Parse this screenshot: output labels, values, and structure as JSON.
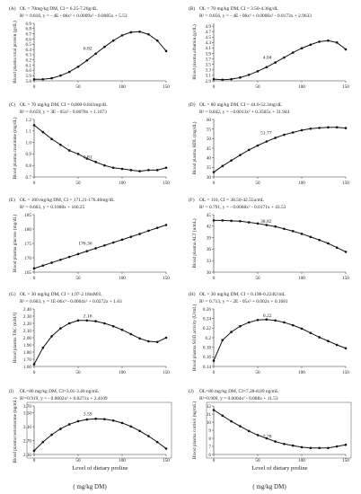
{
  "chart_data": [
    {
      "type": "line",
      "letter": "(A)",
      "caption1": "OL = 70mg/kg DM, CI = 6.25-7.26g/dL",
      "caption2": "R² = 0.816, y = - 4E - 06x³ + 0.0009x² - 0.0085x + 5.53",
      "ylabel": "Blood plasma total protein (g/dL)",
      "ylim": [
        5.8,
        6.9
      ],
      "yticks": [
        "5.8",
        "5.9",
        "6.0",
        "6.1",
        "6.2",
        "6.3",
        "6.4",
        "6.5",
        "6.6",
        "6.7",
        "6.8",
        "6.9"
      ],
      "xlim": [
        0,
        150
      ],
      "xticks": [
        "0",
        "50",
        "100",
        "150"
      ],
      "annotation": "6.82",
      "x": [
        0,
        10,
        20,
        30,
        40,
        50,
        60,
        70,
        80,
        90,
        100,
        110,
        120,
        130,
        140,
        150
      ],
      "values": [
        5.83,
        5.83,
        5.85,
        5.9,
        5.97,
        6.07,
        6.19,
        6.32,
        6.45,
        6.57,
        6.67,
        6.73,
        6.74,
        6.69,
        6.57,
        6.37
      ],
      "frame": false
    },
    {
      "type": "line",
      "letter": "(B)",
      "caption1": "OL = 70 mg/kg DM, CI = 3.50-4.36g/dL",
      "caption2": "R² = 0.856, y = - 4E - 06x³ + 0.0006x² - 0.0173x + 2.9633",
      "ylabel": "Blood plasma albumin (g/dL)",
      "ylim": [
        2.9,
        5.0
      ],
      "yticks": [
        "2.9",
        "3.1",
        "3.3",
        "3.5",
        "3.7",
        "3.9",
        "4.1",
        "4.3",
        "4.5",
        "4.7",
        "4.9"
      ],
      "xlim": [
        0,
        150
      ],
      "xticks": [
        "0",
        "50",
        "100",
        "150"
      ],
      "annotation": "4.04",
      "x": [
        0,
        10,
        20,
        30,
        40,
        50,
        60,
        70,
        80,
        90,
        100,
        110,
        120,
        130,
        140,
        150
      ],
      "values": [
        2.96,
        2.94,
        2.96,
        3.02,
        3.12,
        3.25,
        3.4,
        3.57,
        3.75,
        3.93,
        4.09,
        4.22,
        4.33,
        4.37,
        4.3,
        4.05
      ],
      "frame": false
    },
    {
      "type": "line",
      "letter": "(C)",
      "caption1": "OL = 70 mg/kg DM, CI = 0.800-0.841mg/dL",
      "caption2": "R² = 0.659, y = 3E - 05x² - 0.0078x + 1.1673",
      "ylabel": "Blood plasma creatinine (mg/dL)",
      "ylim": [
        0.7,
        1.2
      ],
      "yticks": [
        "0.7",
        "0.8",
        "0.9",
        "1.0",
        "1.1",
        "1.2"
      ],
      "xlim": [
        0,
        150
      ],
      "xticks": [
        "0",
        "50",
        "100",
        "150"
      ],
      "annotation": "0.81",
      "x": [
        0,
        10,
        20,
        30,
        40,
        50,
        60,
        70,
        80,
        90,
        100,
        110,
        120,
        130,
        140,
        150
      ],
      "values": [
        1.15,
        1.09,
        1.03,
        0.98,
        0.93,
        0.9,
        0.86,
        0.83,
        0.8,
        0.78,
        0.77,
        0.76,
        0.75,
        0.76,
        0.76,
        0.78
      ],
      "frame": false
    },
    {
      "type": "line",
      "letter": "(D)",
      "caption1": "OL = 80 mg/kg DM, CI = 44.0-52.3mg/dL",
      "caption2": "R² = 0.842, y = - 0.0013x² + 0.3565x + 31.944",
      "ylabel": "Blood plasma HDL (mg/dL)",
      "ylim": [
        30,
        60
      ],
      "yticks": [
        "30",
        "35",
        "40",
        "45",
        "50",
        "55",
        "60"
      ],
      "xlim": [
        0,
        150
      ],
      "xticks": [
        "0",
        "50",
        "100",
        "150"
      ],
      "annotation": "51.77",
      "x": [
        0,
        10,
        20,
        30,
        40,
        50,
        60,
        70,
        80,
        90,
        100,
        110,
        120,
        130,
        140,
        150
      ],
      "values": [
        32.5,
        35.7,
        38.6,
        41.4,
        44.1,
        46.4,
        48.5,
        50.4,
        52.0,
        53.2,
        54.4,
        55.2,
        55.6,
        55.9,
        55.9,
        55.5
      ],
      "frame": false
    },
    {
      "type": "line",
      "letter": "(E)",
      "caption1": "OL = 100 mg/kg DM, CI = 171.21-176.40mg/dL",
      "caption2": "R² = 0.663, y = 0.1008x + 166.25",
      "ylabel": "Blood plasma glucose (mg/dL)",
      "ylim": [
        165,
        185
      ],
      "yticks": [
        "165",
        "170",
        "175",
        "180",
        "185"
      ],
      "xlim": [
        0,
        150
      ],
      "xticks": [
        "0",
        "50",
        "100",
        "150"
      ],
      "annotation": "176.36",
      "x": [
        0,
        10,
        20,
        30,
        40,
        50,
        60,
        70,
        80,
        90,
        100,
        110,
        120,
        130,
        140,
        150
      ],
      "values": [
        166.3,
        167.3,
        168.3,
        169.3,
        170.3,
        171.3,
        172.3,
        173.3,
        174.3,
        175.3,
        176.3,
        177.3,
        178.3,
        179.4,
        180.4,
        181.4
      ],
      "frame": false
    },
    {
      "type": "line",
      "letter": "(F)",
      "caption1": "OL = 110, CI = 38.50-42.55u/mL",
      "caption2": "R² = 0.791, y = - 0.0008x² - 0.0171x + 43.53",
      "ylabel": "Blood plasma ALT (u/mL)",
      "ylim": [
        30,
        45
      ],
      "yticks": [
        "30",
        "33",
        "36",
        "39",
        "42",
        "45"
      ],
      "xlim": [
        0,
        150
      ],
      "xticks": [
        "0",
        "50",
        "100",
        "150"
      ],
      "annotation": "38.82",
      "x": [
        0,
        10,
        20,
        30,
        40,
        50,
        60,
        70,
        80,
        90,
        100,
        110,
        120,
        130,
        140,
        150
      ],
      "values": [
        43.5,
        43.5,
        43.4,
        43.3,
        43.0,
        42.7,
        42.3,
        41.9,
        41.3,
        40.7,
        40.0,
        39.2,
        38.4,
        37.5,
        36.4,
        35.3
      ],
      "frame": false
    },
    {
      "type": "line",
      "letter": "(G)",
      "caption1": "OL = 30 mg/kg DM, CI = 1.97-2.18mM/L",
      "caption2": "R² = 0.663, y = 1E-06x³ - 0.0004x² + 0.0272x + 1.63",
      "ylabel": "Blood plasma TAC (mM/l)",
      "ylim": [
        1.6,
        2.4
      ],
      "yticks": [
        "1.60",
        "1.70",
        "1.80",
        "1.90",
        "2.00",
        "2.10",
        "2.20",
        "2.30",
        "2.40"
      ],
      "xlim": [
        0,
        150
      ],
      "xticks": [
        "0",
        "50",
        "100",
        "150"
      ],
      "annotation": "2.16",
      "x": [
        0,
        10,
        20,
        30,
        40,
        50,
        60,
        70,
        80,
        90,
        100,
        110,
        120,
        130,
        140,
        150
      ],
      "values": [
        1.63,
        1.86,
        2.02,
        2.13,
        2.2,
        2.24,
        2.24,
        2.23,
        2.2,
        2.16,
        2.11,
        2.05,
        1.99,
        1.95,
        1.94,
        2.0
      ],
      "frame": false
    },
    {
      "type": "line",
      "letter": "(H)",
      "caption1": "OL = 30 mg/kg DM, CI = 0.198-0.224U/mL",
      "caption2": "R² = 0.713, y = - 2E - 05x² + 0.002x + 0.1681",
      "ylabel": "Blood plasma SOD activity (U/mL)",
      "ylim": [
        0.14,
        0.26
      ],
      "yticks": [
        "0.14",
        "0.16",
        "0.18",
        "0.2",
        "0.22",
        "0.24",
        "0.26"
      ],
      "xlim": [
        0,
        150
      ],
      "xticks": [
        "0",
        "50",
        "100",
        "150"
      ],
      "annotation": "0.22",
      "x": [
        0,
        10,
        20,
        30,
        40,
        50,
        60,
        70,
        80,
        90,
        100,
        110,
        120,
        130,
        140,
        150
      ],
      "values": [
        0.152,
        0.195,
        0.212,
        0.224,
        0.232,
        0.237,
        0.238,
        0.236,
        0.232,
        0.226,
        0.219,
        0.21,
        0.201,
        0.193,
        0.185,
        0.178
      ],
      "frame": false
    },
    {
      "type": "line",
      "letter": "(I)",
      "caption1": "OL=80 mg/kg DM, CI=3.01-3.40 ng/mL",
      "caption2": "R²=0.919, y = - 0.0002x² + 0.0271x + 2.4109",
      "ylabel": "Blood plasma testosterone (ng/mL)",
      "ylim": [
        2.3,
        3.7
      ],
      "yticks": [
        "2.30",
        "2.70",
        "3.10",
        "3.50",
        "3.70"
      ],
      "xlim": [
        0,
        150
      ],
      "xticks": [
        "0",
        "50",
        "100",
        "150"
      ],
      "xlabel": "Level of dietary proline",
      "annotation": "3.59",
      "x": [
        0,
        10,
        20,
        30,
        40,
        50,
        60,
        70,
        80,
        90,
        100,
        110,
        120,
        130,
        140,
        150
      ],
      "values": [
        2.41,
        2.66,
        2.87,
        3.04,
        3.17,
        3.26,
        3.31,
        3.33,
        3.32,
        3.28,
        3.21,
        3.11,
        2.98,
        2.83,
        2.66,
        2.47
      ],
      "frame": true
    },
    {
      "type": "line",
      "letter": "(J)",
      "caption1": "OL=80 mg/kg DM, CI=7.28-8.89 ng/mL",
      "caption2": "R²=0.909, y = 0.0004x² - 0.088x + 11.53",
      "ylabel": "Blood plasma cortisol (ng/mL)",
      "ylim": [
        6,
        12
      ],
      "yticks": [
        "6",
        "7",
        "8",
        "9",
        "10",
        "11",
        "12"
      ],
      "xlim": [
        0,
        150
      ],
      "xticks": [
        "0",
        "50",
        "100",
        "150"
      ],
      "xlabel": "Level of dietary proline",
      "annotation": "7.78",
      "x": [
        0,
        10,
        20,
        30,
        40,
        50,
        60,
        70,
        80,
        90,
        100,
        110,
        120,
        130,
        140,
        150
      ],
      "values": [
        11.5,
        10.8,
        10.1,
        9.5,
        8.9,
        8.4,
        8.0,
        7.6,
        7.3,
        7.1,
        6.9,
        6.8,
        6.8,
        6.8,
        7.0,
        7.2
      ],
      "frame": true
    }
  ],
  "units_note": "( mg/kg DM)"
}
